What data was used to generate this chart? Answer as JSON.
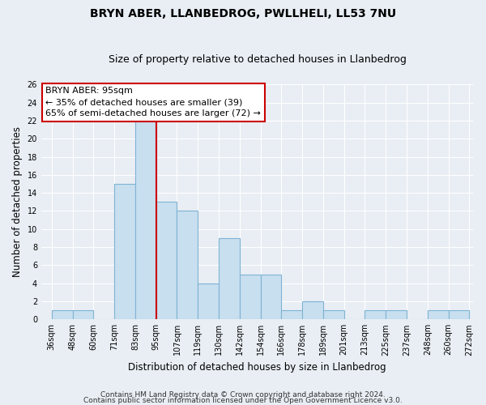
{
  "title": "BRYN ABER, LLANBEDROG, PWLLHELI, LL53 7NU",
  "subtitle": "Size of property relative to detached houses in Llanbedrog",
  "xlabel": "Distribution of detached houses by size in Llanbedrog",
  "ylabel": "Number of detached properties",
  "bin_labels": [
    "36sqm",
    "48sqm",
    "60sqm",
    "71sqm",
    "83sqm",
    "95sqm",
    "107sqm",
    "119sqm",
    "130sqm",
    "142sqm",
    "154sqm",
    "166sqm",
    "178sqm",
    "189sqm",
    "201sqm",
    "213sqm",
    "225sqm",
    "237sqm",
    "248sqm",
    "260sqm",
    "272sqm"
  ],
  "bin_counts": [
    1,
    1,
    0,
    15,
    22,
    13,
    12,
    4,
    9,
    5,
    5,
    1,
    2,
    1,
    0,
    1,
    1,
    0,
    1,
    1
  ],
  "bar_color": "#c8dff0",
  "bar_edge_color": "#7fb3d3",
  "highlight_bar_index": 5,
  "highlight_line_color": "#cc0000",
  "ylim": [
    0,
    26
  ],
  "yticks": [
    0,
    2,
    4,
    6,
    8,
    10,
    12,
    14,
    16,
    18,
    20,
    22,
    24,
    26
  ],
  "annotation_title": "BRYN ABER: 95sqm",
  "annotation_line1": "← 35% of detached houses are smaller (39)",
  "annotation_line2": "65% of semi-detached houses are larger (72) →",
  "footer_line1": "Contains HM Land Registry data © Crown copyright and database right 2024.",
  "footer_line2": "Contains public sector information licensed under the Open Government Licence v3.0.",
  "background_color": "#e8eef4",
  "plot_bg_color": "#e8eef4",
  "grid_color": "#ffffff",
  "title_fontsize": 10,
  "subtitle_fontsize": 9,
  "axis_label_fontsize": 8.5,
  "tick_fontsize": 7,
  "annotation_fontsize": 8,
  "footer_fontsize": 6.5
}
